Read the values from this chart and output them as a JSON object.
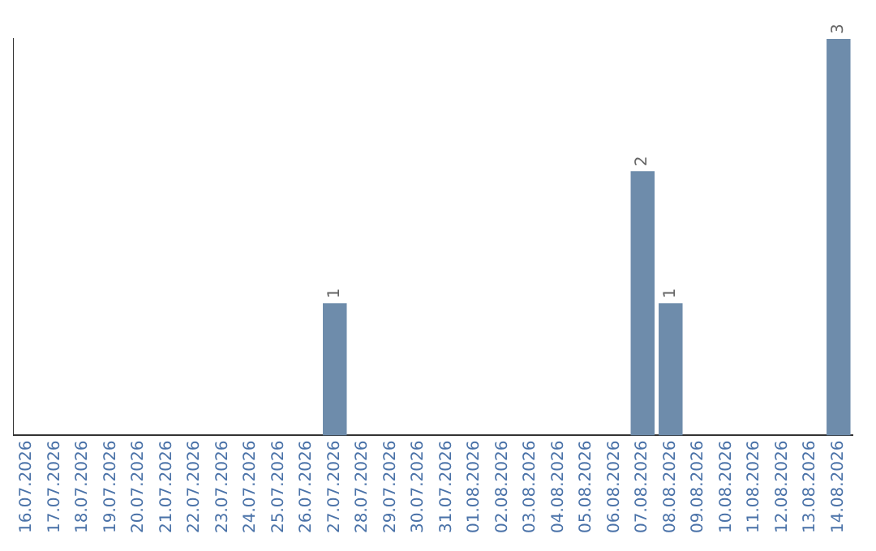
{
  "chart_data": {
    "type": "bar",
    "categories": [
      "16.07.2026",
      "17.07.2026",
      "18.07.2026",
      "19.07.2026",
      "20.07.2026",
      "21.07.2026",
      "22.07.2026",
      "23.07.2026",
      "24.07.2026",
      "25.07.2026",
      "26.07.2026",
      "27.07.2026",
      "28.07.2026",
      "29.07.2026",
      "30.07.2026",
      "31.07.2026",
      "01.08.2026",
      "02.08.2026",
      "03.08.2026",
      "04.08.2026",
      "05.08.2026",
      "06.08.2026",
      "07.08.2026",
      "08.08.2026",
      "09.08.2026",
      "10.08.2026",
      "11.08.2026",
      "12.08.2026",
      "13.08.2026",
      "14.08.2026"
    ],
    "values": [
      0,
      0,
      0,
      0,
      0,
      0,
      0,
      0,
      0,
      0,
      0,
      1,
      0,
      0,
      0,
      0,
      0,
      0,
      0,
      0,
      0,
      0,
      2,
      1,
      0,
      0,
      0,
      0,
      0,
      3
    ],
    "value_labels": [
      null,
      null,
      null,
      null,
      null,
      null,
      null,
      null,
      null,
      null,
      null,
      "1",
      null,
      null,
      null,
      null,
      null,
      null,
      null,
      null,
      null,
      null,
      "2",
      "1",
      null,
      null,
      null,
      null,
      null,
      "3"
    ],
    "color": "#6e8cab",
    "grid": false,
    "legend": false,
    "tick_labels": "x"
  }
}
